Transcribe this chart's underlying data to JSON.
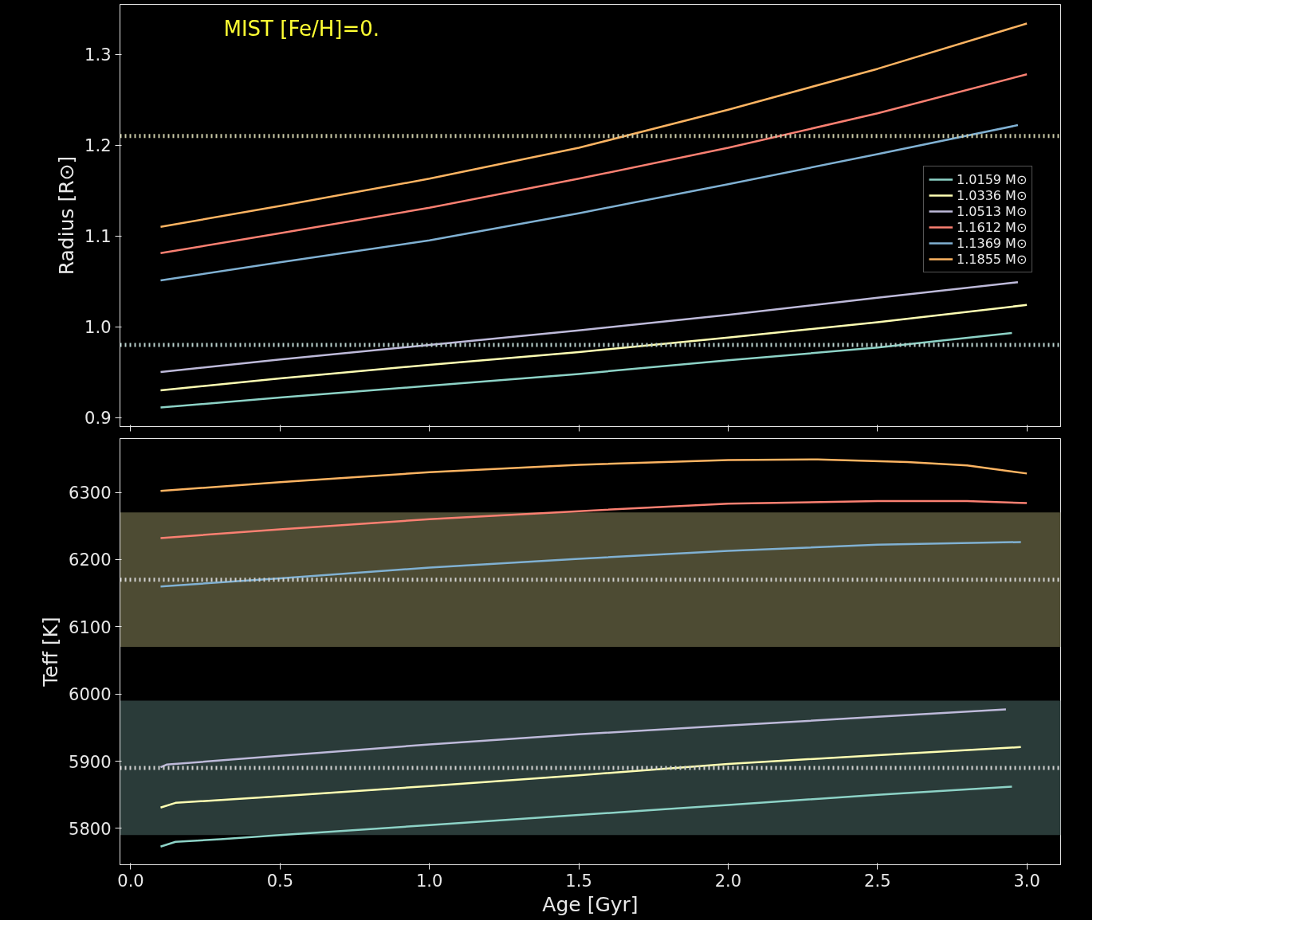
{
  "chart_data": [
    {
      "type": "line",
      "ylabel": "Radius [R⊙]",
      "annotations": [
        "MIST [Fe/H]=0."
      ],
      "legend": "right",
      "grid": false,
      "tick_labels": "y",
      "xlim": [
        -0.036,
        3.113
      ],
      "xticks": [
        {
          "value": 0.0,
          "label": null
        },
        {
          "value": 0.5,
          "label": null
        },
        {
          "value": 1.0,
          "label": null
        },
        {
          "value": 1.5,
          "label": null
        },
        {
          "value": 2.0,
          "label": null
        },
        {
          "value": 2.5,
          "label": null
        },
        {
          "value": 3.0,
          "label": null
        }
      ],
      "ylim": [
        0.89,
        1.355
      ],
      "yticks": [
        {
          "value": 0.9,
          "label": "0.9"
        },
        {
          "value": 1.0,
          "label": "1.0"
        },
        {
          "value": 1.1,
          "label": "1.1"
        },
        {
          "value": 1.2,
          "label": "1.2"
        },
        {
          "value": 1.3,
          "label": "1.3"
        }
      ],
      "ref_lines": [
        {
          "axis": "y",
          "value": 1.21,
          "color": "#c9c9a6",
          "line_style": "dotted"
        },
        {
          "axis": "y",
          "value": 0.98,
          "color": "#b8d0cc",
          "line_style": "dotted"
        }
      ],
      "series": [
        {
          "name": "1.0159 M⊙",
          "color": "#8dd3c7",
          "x": [
            0.1,
            0.5,
            1.0,
            1.5,
            2.0,
            2.5,
            2.95
          ],
          "values": [
            0.911,
            0.922,
            0.935,
            0.948,
            0.963,
            0.977,
            0.993
          ]
        },
        {
          "name": "1.0336 M⊙",
          "color": "#ffffb3",
          "x": [
            0.1,
            0.5,
            1.0,
            1.5,
            2.0,
            2.5,
            3.0
          ],
          "values": [
            0.93,
            0.943,
            0.958,
            0.972,
            0.988,
            1.005,
            1.024
          ]
        },
        {
          "name": "1.0513 M⊙",
          "color": "#bebada",
          "x": [
            0.1,
            0.5,
            1.0,
            1.5,
            2.0,
            2.5,
            2.97
          ],
          "values": [
            0.95,
            0.964,
            0.98,
            0.996,
            1.013,
            1.032,
            1.049
          ]
        },
        {
          "name": "1.1612 M⊙",
          "color": "#fb8072",
          "x": [
            0.1,
            0.5,
            1.0,
            1.5,
            2.0,
            2.5,
            3.0
          ],
          "values": [
            1.081,
            1.103,
            1.131,
            1.163,
            1.197,
            1.235,
            1.278
          ]
        },
        {
          "name": "1.1369 M⊙",
          "color": "#80b1d3",
          "x": [
            0.1,
            0.5,
            1.0,
            1.5,
            2.0,
            2.5,
            2.97
          ],
          "values": [
            1.051,
            1.071,
            1.095,
            1.125,
            1.157,
            1.19,
            1.222
          ]
        },
        {
          "name": "1.1855 M⊙",
          "color": "#fdb462",
          "x": [
            0.1,
            0.5,
            1.0,
            1.5,
            2.0,
            2.5,
            3.0
          ],
          "values": [
            1.11,
            1.133,
            1.163,
            1.197,
            1.239,
            1.284,
            1.334
          ]
        }
      ]
    },
    {
      "type": "line",
      "ylabel": "Teff [K]",
      "xlabel": "Age [Gyr]",
      "grid": false,
      "xlim": [
        -0.036,
        3.113
      ],
      "xticks": [
        {
          "value": 0.0,
          "label": "0.0"
        },
        {
          "value": 0.5,
          "label": "0.5"
        },
        {
          "value": 1.0,
          "label": "1.0"
        },
        {
          "value": 1.5,
          "label": "1.5"
        },
        {
          "value": 2.0,
          "label": "2.0"
        },
        {
          "value": 2.5,
          "label": "2.5"
        },
        {
          "value": 3.0,
          "label": "3.0"
        }
      ],
      "ylim": [
        5746,
        6380
      ],
      "yticks": [
        5800,
        5900,
        6000,
        6100,
        6200,
        6300
      ],
      "bands": [
        {
          "axis": "y",
          "from": 6070,
          "to": 6270,
          "color": "#4d4b33"
        },
        {
          "axis": "y",
          "from": 5790,
          "to": 5990,
          "color": "#2a3b39"
        }
      ],
      "ref_lines": [
        {
          "axis": "y",
          "value": 6170,
          "color": "#d0d0d0",
          "line_style": "dotted"
        },
        {
          "axis": "y",
          "value": 5890,
          "color": "#d0d0d0",
          "line_style": "dotted"
        }
      ],
      "series": [
        {
          "color": "#8dd3c7",
          "x": [
            0.1,
            0.15,
            0.3,
            0.5,
            1.0,
            1.5,
            2.0,
            2.5,
            2.95
          ],
          "values": [
            5773,
            5780,
            5784,
            5790,
            5805,
            5820,
            5835,
            5850,
            5862
          ]
        },
        {
          "color": "#ffffb3",
          "x": [
            0.1,
            0.15,
            0.5,
            1.0,
            1.5,
            2.0,
            2.5,
            2.98
          ],
          "values": [
            5831,
            5838,
            5848,
            5863,
            5879,
            5896,
            5909,
            5921
          ]
        },
        {
          "color": "#bebada",
          "x": [
            0.1,
            0.12,
            0.5,
            1.0,
            1.5,
            2.0,
            2.5,
            2.93
          ],
          "values": [
            5891,
            5895,
            5908,
            5925,
            5940,
            5953,
            5966,
            5977
          ]
        },
        {
          "color": "#fb8072",
          "x": [
            0.1,
            0.5,
            1.0,
            1.5,
            2.0,
            2.5,
            2.8,
            3.0
          ],
          "values": [
            6232,
            6245,
            6260,
            6272,
            6283,
            6287,
            6287,
            6284
          ]
        },
        {
          "color": "#80b1d3",
          "x": [
            0.1,
            0.5,
            1.0,
            1.5,
            2.0,
            2.5,
            2.98
          ],
          "values": [
            6160,
            6172,
            6188,
            6201,
            6213,
            6222,
            6226
          ]
        },
        {
          "color": "#fdb462",
          "x": [
            0.1,
            0.5,
            1.0,
            1.5,
            2.0,
            2.3,
            2.6,
            2.8,
            3.0
          ],
          "values": [
            6302,
            6315,
            6330,
            6341,
            6348,
            6349,
            6345,
            6340,
            6328
          ]
        }
      ]
    }
  ]
}
